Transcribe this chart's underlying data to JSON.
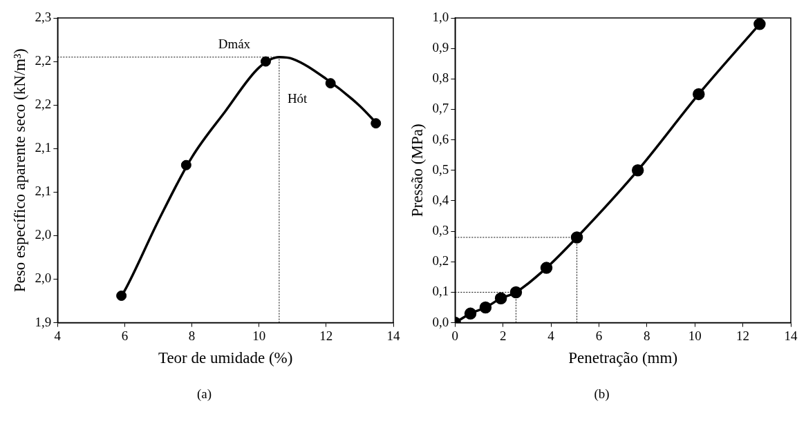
{
  "chart_data": [
    {
      "type": "scatter",
      "xlabel": "Teor de umidade (%)",
      "ylabel": "Peso específico aparente seco (kN/m³)",
      "annotations": [
        "(a)"
      ],
      "xlim": [
        4,
        14
      ],
      "xticks": [
        4,
        6,
        8,
        10,
        12,
        14
      ],
      "ylim": [
        1.9,
        2.25
      ],
      "yticks": [
        {
          "value": 1.9,
          "label": "1,9"
        },
        {
          "value": 1.95,
          "label": "2,0"
        },
        {
          "value": 2.0,
          "label": "2,0"
        },
        {
          "value": 2.05,
          "label": "2,1"
        },
        {
          "value": 2.1,
          "label": "2,1"
        },
        {
          "value": 2.15,
          "label": "2,2"
        },
        {
          "value": 2.2,
          "label": "2,2"
        },
        {
          "value": 2.25,
          "label": "2,3"
        }
      ],
      "grid": false,
      "legend": false,
      "series": [
        {
          "type": "scatter",
          "color": "#000000",
          "marker": "circle",
          "x": [
            5.9,
            7.83,
            10.2,
            12.13,
            13.48
          ],
          "values": [
            1.931,
            2.081,
            2.2,
            2.175,
            2.129
          ]
        },
        {
          "type": "line",
          "color": "#000000",
          "marker": "none",
          "x": [
            5.9,
            6,
            7,
            8,
            9,
            10,
            10.6,
            11,
            12,
            13,
            13.5
          ],
          "values": [
            1.931,
            1.937,
            2.017,
            2.09,
            2.143,
            2.193,
            2.205,
            2.203,
            2.18,
            2.149,
            2.129
          ]
        }
      ],
      "ref_lines": [
        {
          "axis": "y",
          "value": 2.205,
          "label": "Dmáx",
          "line_style": "dotted",
          "color": "#000000"
        },
        {
          "axis": "x",
          "value": 10.6,
          "label": "Hót",
          "line_style": "dotted",
          "color": "#000000"
        }
      ]
    },
    {
      "type": "line",
      "xlabel": "Penetração (mm)",
      "ylabel": "Pressão (MPa)",
      "annotations": [
        "(b)"
      ],
      "xlim": [
        0,
        14
      ],
      "xticks": [
        0,
        2,
        4,
        6,
        8,
        10,
        12,
        14
      ],
      "ylim": [
        0,
        1
      ],
      "yticks": [
        {
          "value": 0,
          "label": "0,0"
        },
        {
          "value": 0.1,
          "label": "0,1"
        },
        {
          "value": 0.2,
          "label": "0,2"
        },
        {
          "value": 0.3,
          "label": "0,3"
        },
        {
          "value": 0.4,
          "label": "0,4"
        },
        {
          "value": 0.5,
          "label": "0,5"
        },
        {
          "value": 0.6,
          "label": "0,6"
        },
        {
          "value": 0.7,
          "label": "0,7"
        },
        {
          "value": 0.8,
          "label": "0,8"
        },
        {
          "value": 0.9,
          "label": "0,9"
        },
        {
          "value": 1,
          "label": "1,0"
        }
      ],
      "grid": false,
      "legend": false,
      "marker": "circle",
      "series": [
        {
          "color": "#000000",
          "x": [
            0,
            0.64,
            1.27,
            1.91,
            2.54,
            3.81,
            5.08,
            7.62,
            10.16,
            12.7
          ],
          "values": [
            0,
            0.03,
            0.05,
            0.08,
            0.1,
            0.18,
            0.28,
            0.5,
            0.75,
            0.98
          ]
        }
      ],
      "ref_lines": [
        {
          "axis": "y",
          "value": 0.1,
          "line_style": "dotted",
          "color": "#000000"
        },
        {
          "axis": "y",
          "value": 0.28,
          "line_style": "dotted",
          "color": "#000000"
        },
        {
          "axis": "x",
          "value": 2.54,
          "line_style": "dotted",
          "color": "#000000"
        },
        {
          "axis": "x",
          "value": 5.08,
          "line_style": "dotted",
          "color": "#000000"
        }
      ]
    }
  ]
}
